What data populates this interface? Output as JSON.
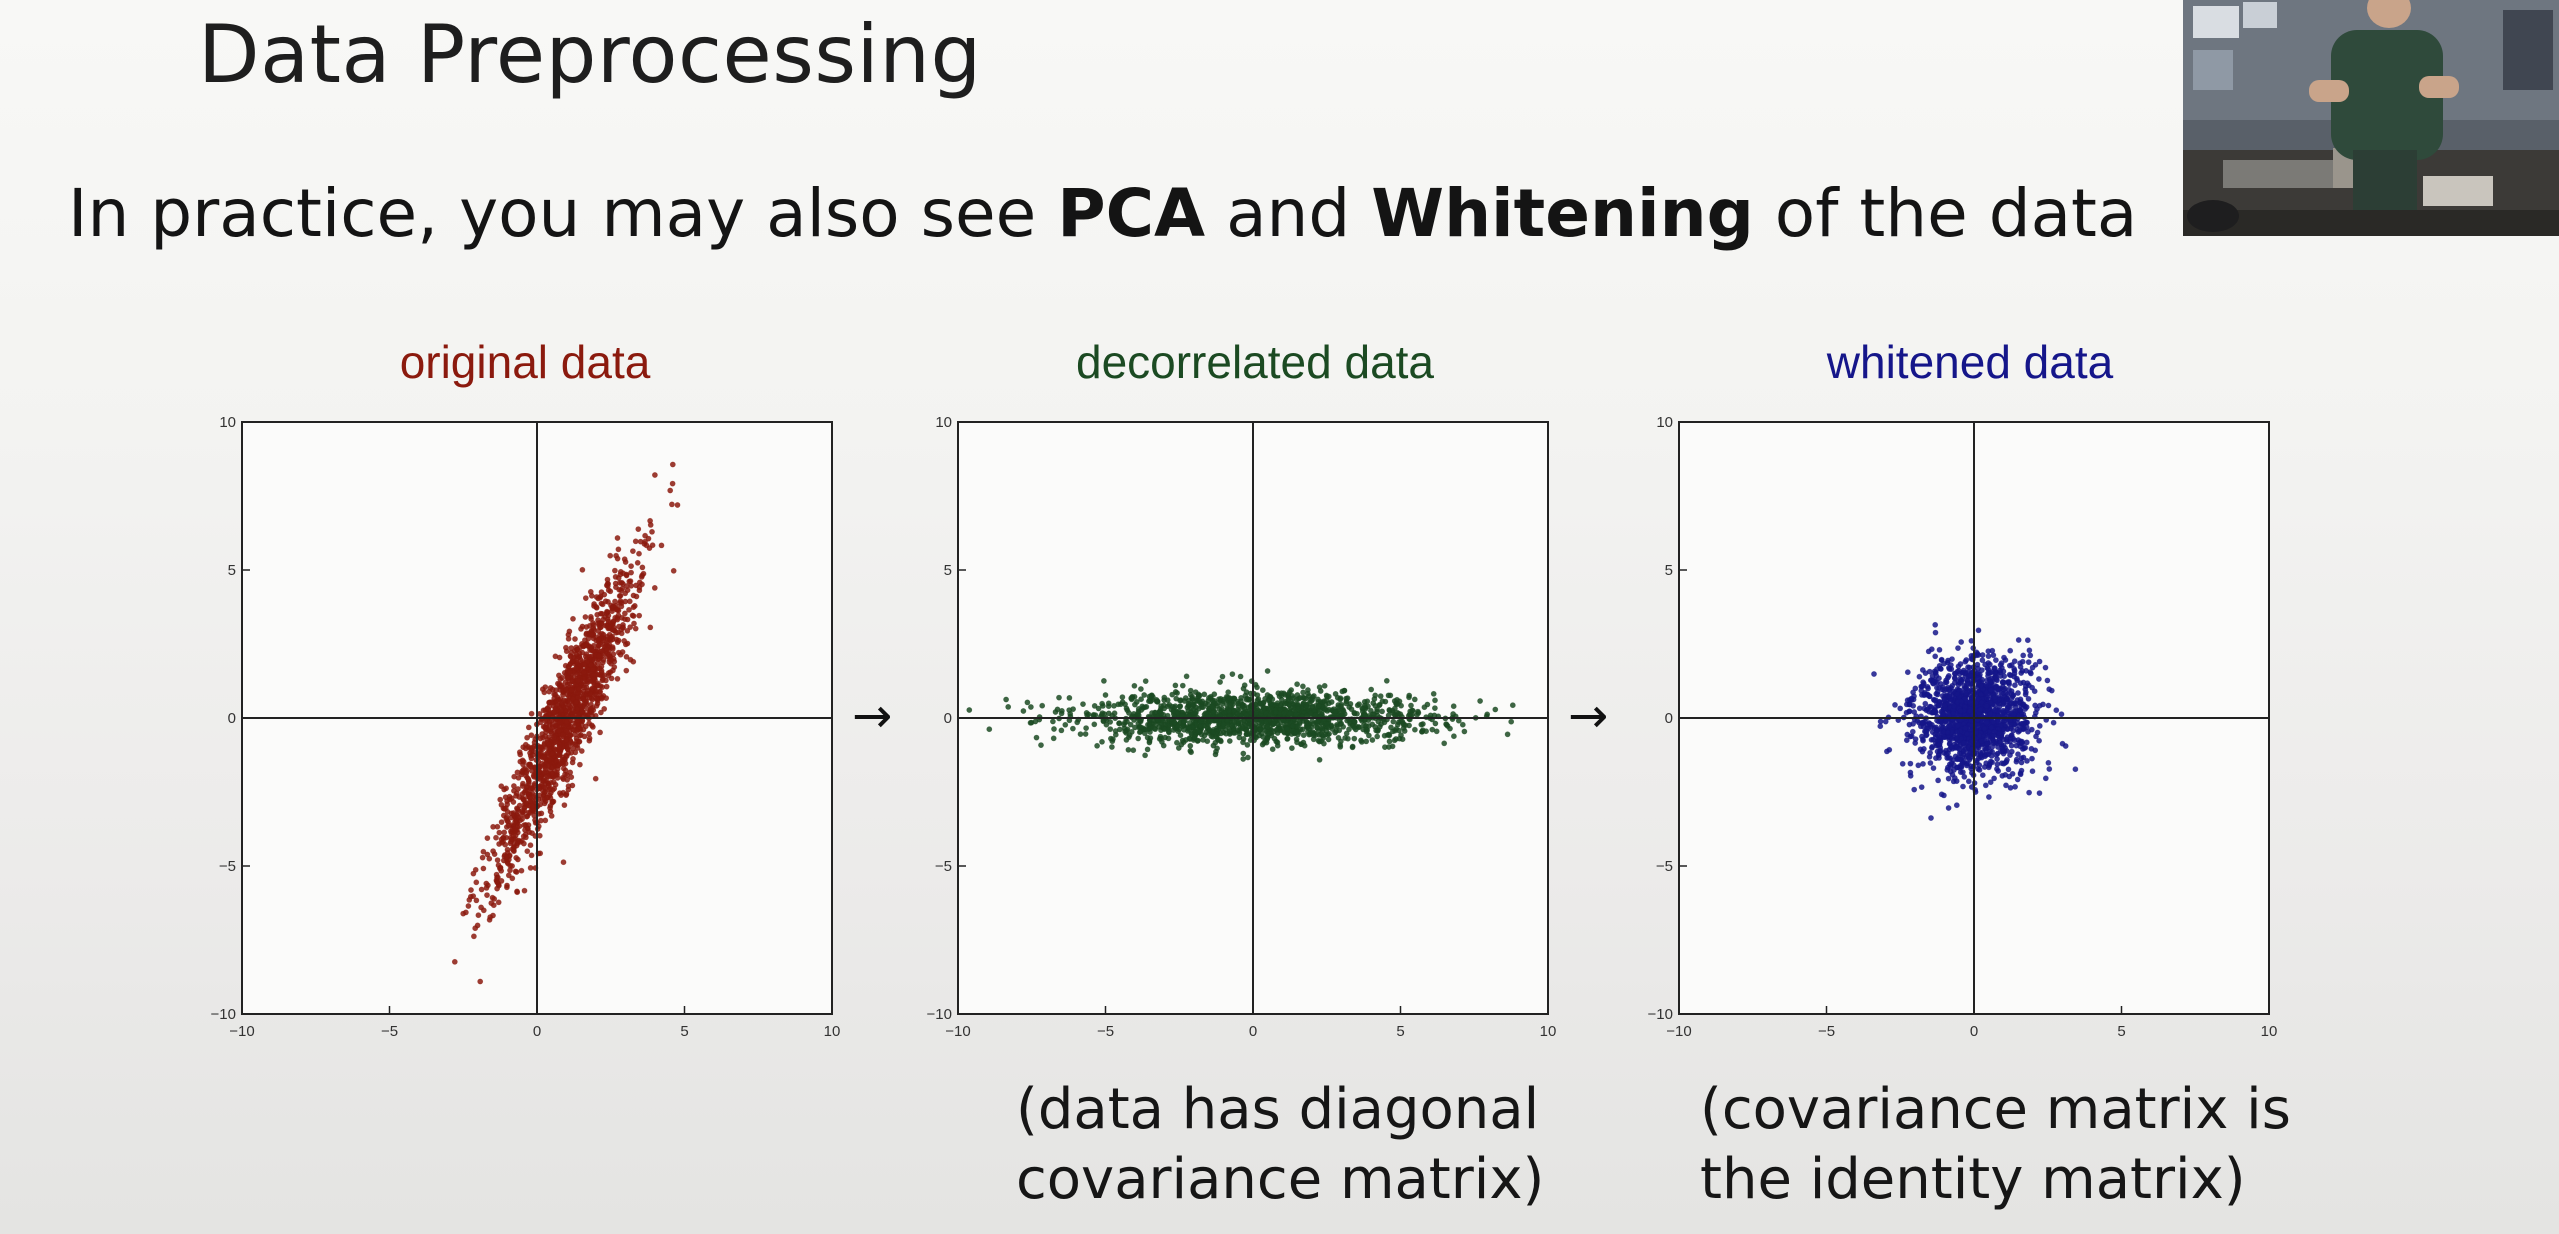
{
  "slide": {
    "title": "Data Preprocessing",
    "subtitle_before": "In practice, you may also see ",
    "subtitle_bold1": "PCA",
    "subtitle_mid": " and ",
    "subtitle_bold2": "Whitening",
    "subtitle_after": " of the data"
  },
  "arrows": [
    "→",
    "→"
  ],
  "captions": {
    "decorrelated": [
      "(data has diagonal",
      "covariance matrix)"
    ],
    "whitened": [
      "(covariance matrix is",
      "the identity matrix)"
    ]
  },
  "colors": {
    "original": "#8b1a0e",
    "decorrelated": "#1b4a22",
    "whitened": "#15168a"
  },
  "chart_data": [
    {
      "type": "scatter",
      "title": "original data",
      "color": "#8b1a0e",
      "xlim": [
        -10,
        10
      ],
      "ylim": [
        -10,
        10
      ],
      "xticks": [
        "−10",
        "−5",
        "0",
        "5",
        "10"
      ],
      "yticks": [
        "10",
        "5",
        "0",
        "−5",
        "−10"
      ],
      "distribution": {
        "kind": "correlated",
        "mean": [
          1,
          0
        ],
        "std_major": 2.9,
        "std_minor": 0.45,
        "angle_deg": 66,
        "n": 1500
      },
      "points_note": "elongated cloud along a positive diagonal from about (-3.5,-9) to (4.5,7.5)"
    },
    {
      "type": "scatter",
      "title": "decorrelated data",
      "color": "#1b4a22",
      "xlim": [
        -10,
        10
      ],
      "ylim": [
        -10,
        10
      ],
      "xticks": [
        "−10",
        "−5",
        "0",
        "5",
        "10"
      ],
      "yticks": [
        "10",
        "5",
        "0",
        "−5",
        "−10"
      ],
      "distribution": {
        "kind": "axis-aligned",
        "mean": [
          0,
          0
        ],
        "std_x": 3.0,
        "std_y": 0.45,
        "n": 1500
      }
    },
    {
      "type": "scatter",
      "title": "whitened data",
      "color": "#15168a",
      "xlim": [
        -10,
        10
      ],
      "ylim": [
        -10,
        10
      ],
      "xticks": [
        "−10",
        "−5",
        "0",
        "5",
        "10"
      ],
      "yticks": [
        "10",
        "5",
        "0",
        "−5",
        "−10"
      ],
      "distribution": {
        "kind": "isotropic",
        "mean": [
          0,
          0
        ],
        "std_x": 1.0,
        "std_y": 1.0,
        "n": 1500
      }
    }
  ]
}
